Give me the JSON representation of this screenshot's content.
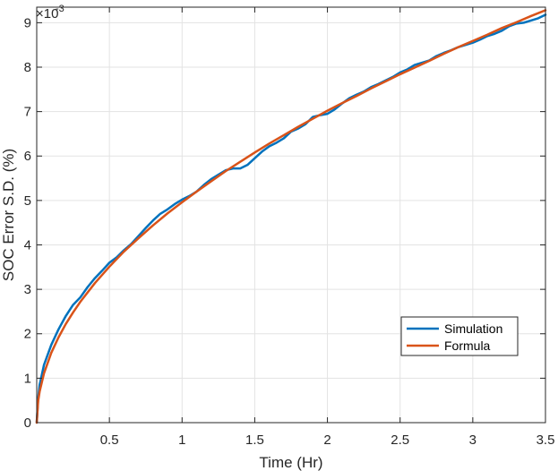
{
  "chart_data": {
    "type": "line",
    "xlabel": "Time (Hr)",
    "ylabel": "SOC Error S.D. (%)",
    "xlim": [
      0,
      3.5
    ],
    "ylim": [
      0,
      9.35
    ],
    "y_multiplier": "×10",
    "y_exponent": "-3",
    "xticks": [
      0.5,
      1,
      1.5,
      2,
      2.5,
      3,
      3.5
    ],
    "xtick_labels": [
      "0.5",
      "1",
      "1.5",
      "2",
      "2.5",
      "3",
      "3.5"
    ],
    "yticks": [
      0,
      1,
      2,
      3,
      4,
      5,
      6,
      7,
      8,
      9
    ],
    "ytick_labels": [
      "0",
      "1",
      "2",
      "3",
      "4",
      "5",
      "6",
      "7",
      "8",
      "9"
    ],
    "grid": true,
    "legend_position": "lower-right",
    "series": [
      {
        "name": "Simulation",
        "color": "#0072BD",
        "x": [
          0,
          0.01,
          0.02,
          0.05,
          0.1,
          0.15,
          0.2,
          0.25,
          0.3,
          0.35,
          0.4,
          0.45,
          0.5,
          0.55,
          0.6,
          0.65,
          0.7,
          0.75,
          0.8,
          0.85,
          0.9,
          0.95,
          1.0,
          1.05,
          1.1,
          1.15,
          1.2,
          1.25,
          1.3,
          1.35,
          1.4,
          1.45,
          1.5,
          1.55,
          1.6,
          1.65,
          1.7,
          1.75,
          1.8,
          1.85,
          1.9,
          1.95,
          2.0,
          2.05,
          2.1,
          2.15,
          2.2,
          2.25,
          2.3,
          2.35,
          2.4,
          2.45,
          2.5,
          2.55,
          2.6,
          2.65,
          2.7,
          2.75,
          2.8,
          2.85,
          2.9,
          2.95,
          3.0,
          3.05,
          3.1,
          3.15,
          3.2,
          3.25,
          3.3,
          3.35,
          3.4,
          3.45,
          3.5
        ],
        "values": [
          0,
          0.55,
          0.85,
          1.3,
          1.75,
          2.1,
          2.4,
          2.65,
          2.82,
          3.05,
          3.25,
          3.42,
          3.6,
          3.72,
          3.88,
          4.02,
          4.2,
          4.38,
          4.55,
          4.7,
          4.8,
          4.92,
          5.02,
          5.1,
          5.2,
          5.35,
          5.48,
          5.58,
          5.68,
          5.72,
          5.72,
          5.8,
          5.95,
          6.1,
          6.22,
          6.3,
          6.4,
          6.55,
          6.62,
          6.72,
          6.88,
          6.92,
          6.95,
          7.05,
          7.18,
          7.3,
          7.38,
          7.45,
          7.55,
          7.62,
          7.7,
          7.78,
          7.88,
          7.95,
          8.05,
          8.1,
          8.15,
          8.25,
          8.32,
          8.38,
          8.45,
          8.5,
          8.55,
          8.62,
          8.7,
          8.75,
          8.82,
          8.92,
          8.98,
          9.0,
          9.05,
          9.1,
          9.18
        ]
      },
      {
        "name": "Formula",
        "color": "#D95319",
        "x": [
          0,
          0.01,
          0.02,
          0.05,
          0.1,
          0.15,
          0.2,
          0.25,
          0.3,
          0.4,
          0.5,
          0.6,
          0.7,
          0.8,
          0.9,
          1.0,
          1.1,
          1.2,
          1.3,
          1.4,
          1.5,
          1.6,
          1.7,
          1.8,
          1.9,
          2.0,
          2.1,
          2.2,
          2.3,
          2.4,
          2.5,
          2.6,
          2.7,
          2.8,
          2.9,
          3.0,
          3.1,
          3.2,
          3.3,
          3.4,
          3.5
        ],
        "values": [
          0,
          0.49,
          0.7,
          1.11,
          1.57,
          1.92,
          2.22,
          2.48,
          2.72,
          3.14,
          3.51,
          3.85,
          4.15,
          4.44,
          4.71,
          4.96,
          5.2,
          5.43,
          5.66,
          5.87,
          6.08,
          6.28,
          6.47,
          6.66,
          6.84,
          7.02,
          7.19,
          7.35,
          7.52,
          7.68,
          7.84,
          7.99,
          8.14,
          8.3,
          8.45,
          8.59,
          8.73,
          8.88,
          9.01,
          9.15,
          9.28
        ]
      }
    ]
  }
}
